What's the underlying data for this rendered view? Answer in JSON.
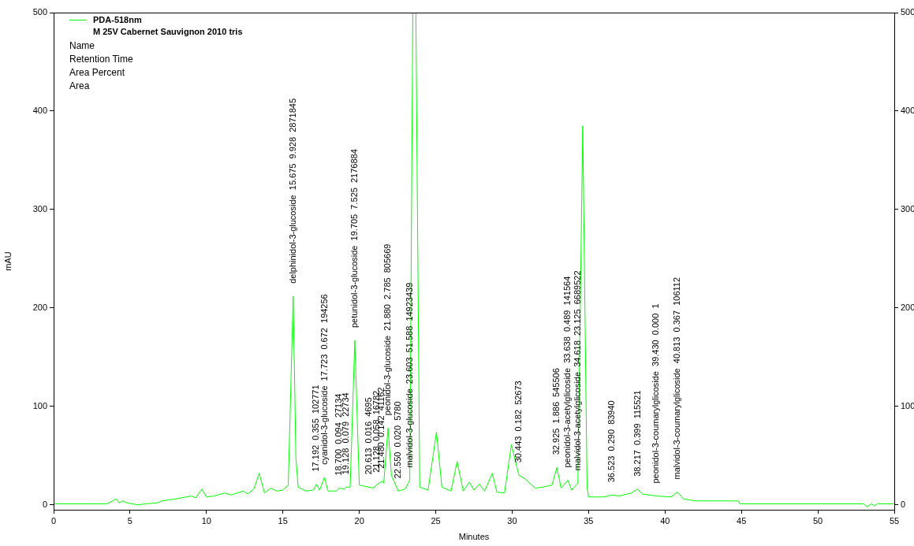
{
  "chart_data": {
    "type": "line",
    "xlabel": "Minutes",
    "ylabel": "mAU",
    "legend": "top left",
    "grid": false,
    "marker": "none",
    "line_style": "solid",
    "xlim": [
      0,
      55
    ],
    "xticks": [
      0,
      5,
      10,
      15,
      20,
      25,
      30,
      35,
      40,
      45,
      50,
      55
    ],
    "ylim": [
      -5,
      500
    ],
    "yticks": [
      0,
      100,
      200,
      300,
      400,
      500
    ],
    "y2lim": [
      -5,
      500
    ],
    "y2ticks": [
      0,
      100,
      200,
      300,
      400,
      500
    ],
    "series": [
      {
        "name": "PDA-518nm",
        "color": "#00ff00",
        "x": [
          0,
          3.5,
          4.1,
          4.3,
          4.55,
          4.8,
          5.5,
          6.0,
          6.8,
          7.1,
          7.5,
          8.0,
          9.0,
          9.3,
          9.7,
          10.0,
          10.5,
          11.2,
          11.6,
          12.4,
          12.7,
          13.1,
          13.45,
          13.8,
          14.2,
          14.6,
          15.0,
          15.35,
          15.675,
          15.85,
          16.0,
          16.5,
          17.0,
          17.192,
          17.4,
          17.723,
          17.95,
          18.5,
          18.7,
          19.0,
          19.128,
          19.4,
          19.705,
          20.0,
          20.613,
          20.9,
          21.128,
          21.48,
          21.6,
          21.88,
          22.1,
          22.55,
          23.0,
          23.3,
          23.5,
          23.603,
          23.7,
          23.95,
          24.5,
          25.05,
          25.4,
          26.0,
          26.4,
          26.8,
          27.2,
          27.5,
          27.85,
          28.2,
          28.7,
          29.0,
          29.5,
          29.95,
          30.443,
          30.8,
          31.5,
          32.0,
          32.6,
          32.925,
          33.2,
          33.638,
          33.9,
          34.3,
          34.618,
          34.9,
          35.0,
          36.0,
          36.523,
          37.0,
          37.8,
          38.217,
          38.5,
          39.43,
          40.4,
          40.813,
          41.2,
          42.0,
          44.8,
          44.9,
          53.0,
          53.2,
          53.5,
          53.7,
          53.9,
          55
        ],
        "values": [
          1,
          1,
          6,
          2,
          4,
          2,
          0,
          1,
          2,
          4,
          5,
          6,
          9,
          7,
          16,
          8,
          9,
          12,
          10,
          14,
          11,
          16,
          32,
          12,
          17,
          14,
          15,
          20,
          212,
          48,
          18,
          14,
          15,
          21,
          15,
          28,
          14,
          14,
          17,
          16,
          18,
          18,
          167,
          20,
          18,
          17,
          20,
          24,
          22,
          78,
          30,
          14,
          16,
          25,
          500,
          500,
          500,
          18,
          15,
          74,
          18,
          14,
          44,
          14,
          23,
          15,
          21,
          14,
          32,
          13,
          12,
          61,
          30,
          27,
          17,
          18,
          20,
          38,
          17,
          25,
          15,
          22,
          385,
          18,
          8,
          8,
          10,
          9,
          12,
          16,
          11,
          9,
          8,
          13,
          6,
          4,
          4,
          1,
          1,
          -2,
          1,
          -1,
          1,
          1
        ]
      }
    ],
    "annotations": [
      "M 25V Cabernet Sauvignon 2010 tris",
      "Name",
      "Retention Time",
      "Area Percent",
      "Area",
      {
        "text": "delphinidol-3-glucoside  15.675  9.928  2871845",
        "x": 15.675,
        "y": 212
      },
      {
        "text": "17.192  0.355  102771",
        "x": 17.192,
        "y": 21
      },
      {
        "text": "cyanidol-3-glucoside  17.723  0.672  194256",
        "x": 17.723,
        "y": 28
      },
      {
        "text": "18.700  0.094  27134",
        "x": 18.7,
        "y": 17
      },
      {
        "text": "19.128  0.079  22734",
        "x": 19.128,
        "y": 18
      },
      {
        "text": "petunidol-3-glucoside  19.705  7.525  2176884",
        "x": 19.705,
        "y": 167
      },
      {
        "text": "20.613  0.016  4695",
        "x": 20.613,
        "y": 18
      },
      {
        "text": "21.128  0.058  16782",
        "x": 21.128,
        "y": 20
      },
      {
        "text": "21.480  0.142  41162",
        "x": 21.48,
        "y": 24
      },
      {
        "text": "peonidol-3-glucoside  21.880  2.785  805669",
        "x": 21.88,
        "y": 78
      },
      {
        "text": "22.550  0.020  5780",
        "x": 22.55,
        "y": 14
      },
      {
        "text": "malvidol-3-glucoside  23.603  51.588  14923439",
        "x": 23.3,
        "y": 25
      },
      {
        "text": "30.443  0.182  52673",
        "x": 30.443,
        "y": 30
      },
      {
        "text": "32.925  1.886  545506",
        "x": 32.925,
        "y": 38
      },
      {
        "text": "peonidol-3-acetylglicoside  33.638  0.489  141564",
        "x": 33.638,
        "y": 25
      },
      {
        "text": "malvidol-3-acetylglicoside  34.618  23.125  6689522",
        "x": 34.3,
        "y": 22
      },
      {
        "text": "36.523  0.290  83940",
        "x": 36.523,
        "y": 10
      },
      {
        "text": "38.217  0.399  115521",
        "x": 38.217,
        "y": 16
      },
      {
        "text": "peonidol-3-coumarylglicoside  39.430  0.000  1",
        "x": 39.43,
        "y": 9
      },
      {
        "text": "malvidol-3-coumarylglicoside  40.813  0.367  106112",
        "x": 40.813,
        "y": 13
      }
    ]
  }
}
